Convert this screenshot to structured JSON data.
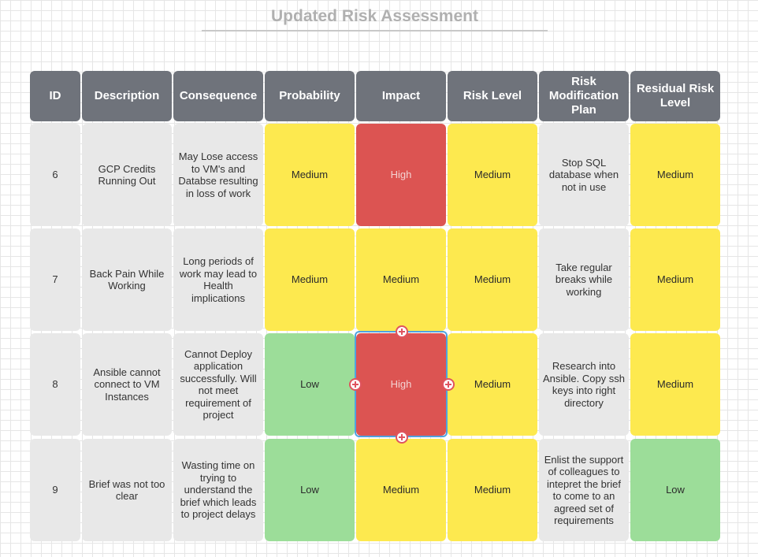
{
  "title": "Updated Risk Assessment",
  "colors": {
    "high": "#dc5452",
    "medium": "#fde94f",
    "low": "#9cdd99",
    "header": "#6f737b",
    "selection": "#4fa3e0"
  },
  "headers": [
    "ID",
    "Description",
    "Consequence",
    "Probability",
    "Impact",
    "Risk Level",
    "Risk Modification Plan",
    "Residual Risk Level"
  ],
  "rows": [
    {
      "id": "6",
      "description": "GCP Credits Running Out",
      "consequence": "May Lose access to VM's and Databse resulting in loss of work",
      "probability": "Medium",
      "impact": "High",
      "risk_level": "Medium",
      "plan": "Stop SQL database when not in use",
      "residual": "Medium"
    },
    {
      "id": "7",
      "description": "Back Pain While Working",
      "consequence": "Long periods of work may lead to Health implications",
      "probability": "Medium",
      "impact": "Medium",
      "risk_level": "Medium",
      "plan": "Take regular breaks while working",
      "residual": "Medium"
    },
    {
      "id": "8",
      "description": "Ansible cannot connect to VM Instances",
      "consequence": "Cannot Deploy application successfully. Will not meet requirement of project",
      "probability": "Low",
      "impact": "High",
      "risk_level": "Medium",
      "plan": "Research into Ansible. Copy ssh keys into right directory",
      "residual": "Medium"
    },
    {
      "id": "9",
      "description": "Brief was not too clear",
      "consequence": "Wasting time on trying to understand the brief which leads to project delays",
      "probability": "Low",
      "impact": "Medium",
      "risk_level": "Medium",
      "plan": "Enlist the support of colleagues to intepret the brief to come to an agreed set of requirements",
      "residual": "Low"
    }
  ],
  "selection": {
    "row": 2,
    "column": "impact",
    "handle_icon": "plus-circle-icon"
  }
}
